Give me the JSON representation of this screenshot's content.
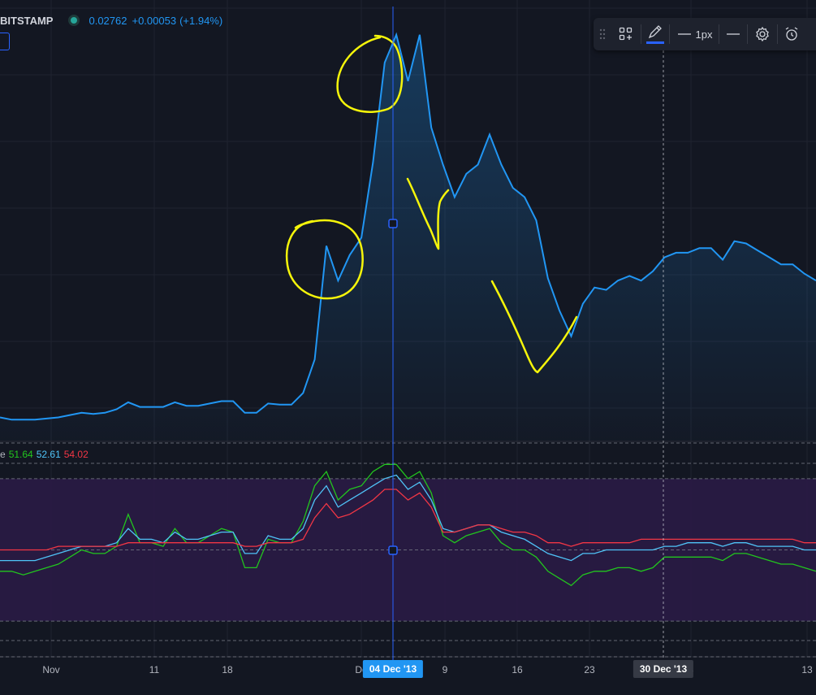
{
  "header": {
    "symbol": "BITSTAMP",
    "price": "0.02762",
    "change": "+0.00053",
    "change_pct": "(+1.94%)"
  },
  "toolbar": {
    "width_label": "1px",
    "icons": [
      "drag-handle-icon",
      "templates-icon",
      "pencil-icon",
      "line-style-icon",
      "line-width-icon",
      "settings-icon",
      "alarm-icon"
    ]
  },
  "oscillator": {
    "legend_prefix": "e",
    "values": [
      "51.64",
      "52.61",
      "54.02"
    ],
    "colors": [
      "#22c51e",
      "#4fc3f7",
      "#f23645"
    ]
  },
  "xaxis": {
    "labels": [
      "Nov",
      "11",
      "18",
      "De",
      "9",
      "16",
      "23",
      "4",
      "13"
    ],
    "crosshair_label": "04 Dec '13",
    "marker_label": "30 Dec '13"
  },
  "colors": {
    "background": "#131722",
    "price_line": "#2196f3",
    "highlight_band": "#2a1b45",
    "annotation": "#f5f50a",
    "crosshair": "#2962ff"
  },
  "chart_data": {
    "type": "line",
    "title": "",
    "xlabel": "",
    "ylabel": "",
    "series": [
      {
        "values": [
          0.012,
          0.0118,
          0.0118,
          0.0118,
          0.0119,
          0.012,
          0.0122,
          0.0124,
          0.0123,
          0.0124,
          0.0127,
          0.0133,
          0.0129,
          0.0129,
          0.0129,
          0.0133,
          0.013,
          0.013,
          0.0132,
          0.0134,
          0.0134,
          0.0124,
          0.0124,
          0.0132,
          0.0131,
          0.0131,
          0.0141,
          0.017,
          0.0268,
          0.0238,
          0.026,
          0.0275,
          0.034,
          0.0426,
          0.045,
          0.041,
          0.045,
          0.037,
          0.0338,
          0.031,
          0.033,
          0.0338,
          0.0364,
          0.0338,
          0.0318,
          0.031,
          0.029,
          0.024,
          0.0212,
          0.019,
          0.0218,
          0.0232,
          0.023,
          0.0238,
          0.0242,
          0.0238,
          0.0246,
          0.0258,
          0.0262,
          0.0262,
          0.0266,
          0.0266,
          0.0256,
          0.0272,
          0.027,
          0.0264,
          0.0258,
          0.0252,
          0.0252,
          0.0244,
          0.0238
        ]
      }
    ],
    "ylim": [
      0.01,
      0.048
    ]
  },
  "oscillator_data": {
    "series": [
      {
        "color": "#22c51e",
        "values": [
          44,
          44,
          43,
          44,
          45,
          46,
          48,
          50,
          49,
          49,
          51,
          60,
          52,
          52,
          51,
          56,
          52,
          52,
          54,
          56,
          55,
          45,
          45,
          53,
          52,
          52,
          58,
          68,
          72,
          64,
          67,
          68,
          72,
          74,
          74,
          70,
          72,
          66,
          54,
          52,
          54,
          55,
          56,
          52,
          50,
          50,
          48,
          44,
          42,
          40,
          43,
          44,
          44,
          45,
          45,
          44,
          45,
          48,
          48,
          48,
          48,
          48,
          47,
          49,
          49,
          48,
          47,
          46,
          46,
          45,
          44
        ]
      },
      {
        "color": "#4fc3f7",
        "values": [
          47,
          47,
          47,
          47,
          48,
          49,
          50,
          51,
          51,
          51,
          52,
          56,
          53,
          53,
          52,
          55,
          53,
          53,
          54,
          55,
          55,
          49,
          49,
          54,
          53,
          53,
          56,
          64,
          68,
          62,
          64,
          66,
          68,
          70,
          71,
          67,
          69,
          64,
          56,
          55,
          56,
          57,
          57,
          55,
          54,
          53,
          51,
          49,
          48,
          47,
          49,
          49,
          50,
          50,
          50,
          50,
          50,
          51,
          51,
          52,
          52,
          52,
          51,
          52,
          52,
          51,
          51,
          51,
          51,
          50,
          50
        ]
      },
      {
        "color": "#f23645",
        "values": [
          50,
          50,
          50,
          50,
          50,
          51,
          51,
          51,
          51,
          51,
          51,
          52,
          52,
          52,
          52,
          52,
          52,
          52,
          52,
          52,
          52,
          51,
          51,
          52,
          52,
          52,
          53,
          59,
          63,
          59,
          60,
          62,
          64,
          67,
          67,
          64,
          66,
          62,
          55,
          55,
          56,
          57,
          57,
          56,
          55,
          55,
          54,
          52,
          52,
          51,
          52,
          52,
          52,
          52,
          52,
          53,
          53,
          53,
          53,
          53,
          53,
          53,
          53,
          53,
          53,
          53,
          53,
          53,
          53,
          52,
          52
        ]
      }
    ],
    "upper_level": 70,
    "lower_level": 30,
    "range": [
      20,
      80
    ]
  }
}
